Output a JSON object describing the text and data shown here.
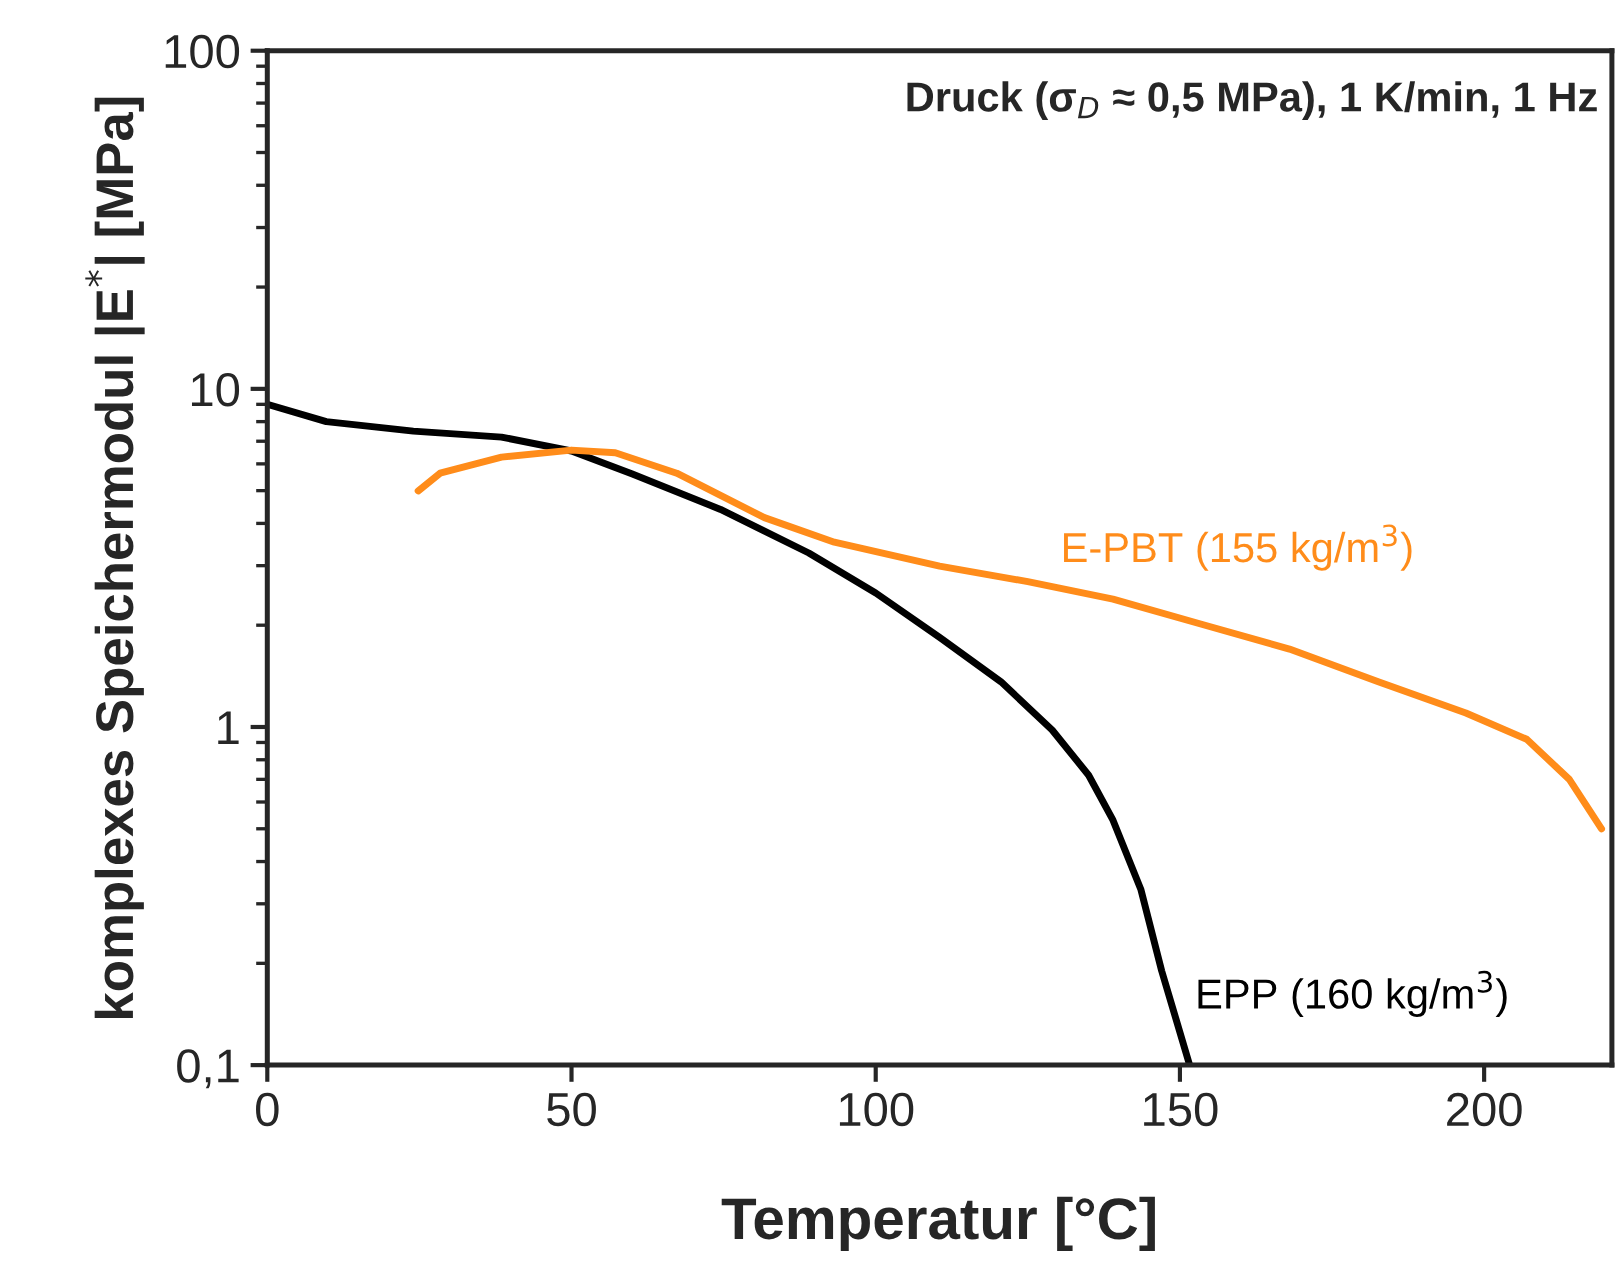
{
  "chart_data": {
    "type": "line",
    "xlabel": "Temperatur [°C]",
    "ylabel": "komplexes Speichermodul |E$^{*}$| [MPa]",
    "log": "y",
    "xlim": [
      0,
      221
    ],
    "xticks": [
      0,
      50,
      100,
      150,
      200
    ],
    "ylim": [
      0.1,
      100
    ],
    "yticks": [
      {
        "value": 0.1,
        "label": "0,1"
      },
      1,
      10,
      100
    ],
    "grid": false,
    "legend": false,
    "marker": "none",
    "line_style": "solid",
    "annotations": [
      "Druck (σ$_{D}$ ≈ 0,5 MPa), 1 K/min, 1 Hz"
    ],
    "series": [
      {
        "name": "EPP (160 kg/m$^{3}$)",
        "color": "#000000",
        "x": [
          0,
          9.7,
          24,
          38.5,
          50,
          60,
          74.5,
          89,
          100,
          110.5,
          120.6,
          129,
          135,
          139,
          143.6,
          147,
          151.6
        ],
        "values": [
          9.0,
          8.0,
          7.5,
          7.2,
          6.55,
          5.6,
          4.4,
          3.27,
          2.49,
          1.84,
          1.36,
          0.98,
          0.72,
          0.53,
          0.33,
          0.19,
          0.1
        ]
      },
      {
        "name": "E-PBT (155 kg/m$^{3}$)",
        "color": "#ff8c1a",
        "x": [
          24.8,
          28.4,
          38.5,
          50,
          57.2,
          67.3,
          81.7,
          93.2,
          110.5,
          125,
          139,
          153.7,
          168,
          182.6,
          197,
          207,
          214,
          219.3
        ],
        "values": [
          4.99,
          5.63,
          6.28,
          6.59,
          6.47,
          5.63,
          4.16,
          3.52,
          2.99,
          2.69,
          2.39,
          2.01,
          1.7,
          1.36,
          1.1,
          0.92,
          0.7,
          0.5
        ]
      }
    ]
  }
}
